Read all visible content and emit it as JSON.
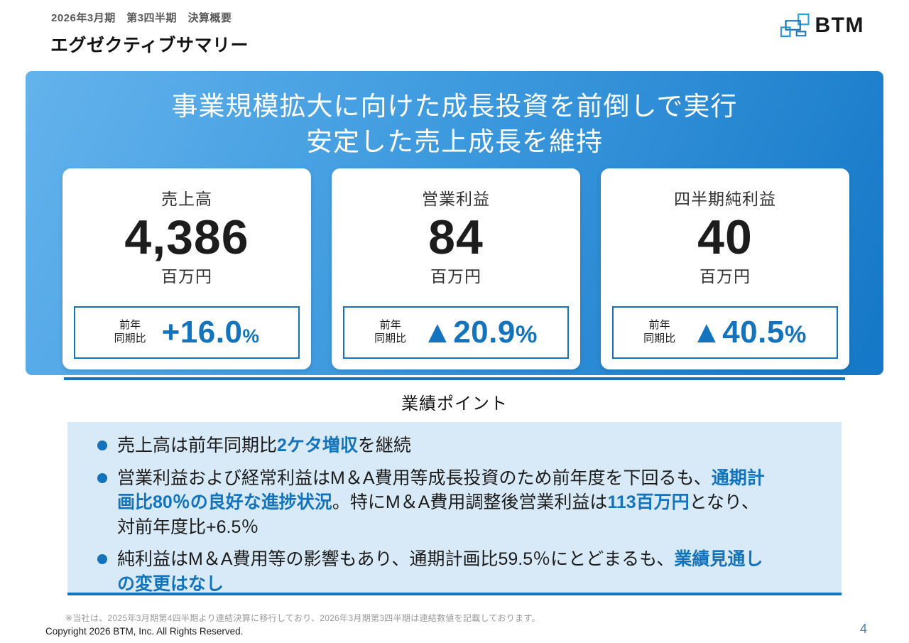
{
  "page": {
    "eyebrow": "2026年3月期　第3四半期　決算概要",
    "title": "エグゼクティブサマリー",
    "footnote": "※当社は、2025年3月期第4四半期より連結決算に移行しており、2026年3月期第3四半期は連結数値を記載しております。",
    "copyright": "Copyright 2026 BTM, Inc. All Rights Reserved.",
    "page_number": "4"
  },
  "logo": {
    "text": "BTM"
  },
  "banner": {
    "headline_line1": "事業規模拡大に向けた成長投資を前倒しで実行",
    "headline_line2": "安定した売上成長を維持"
  },
  "cards": [
    {
      "label": "売上高",
      "value": "4,386",
      "unit": "百万円",
      "yoy_label_lines": [
        "前年",
        "同期比"
      ],
      "change_value": "+16.0",
      "change_unit": "%"
    },
    {
      "label": "営業利益",
      "value": "84",
      "unit": "百万円",
      "yoy_label_lines": [
        "前年",
        "同期比"
      ],
      "change_value": "▲20.9",
      "change_unit": "%"
    },
    {
      "label": "四半期純利益",
      "value": "40",
      "unit": "百万円",
      "yoy_label_lines": [
        "前年",
        "同期比"
      ],
      "change_value": "▲40.5",
      "change_unit": "%"
    }
  ],
  "points": {
    "heading": "業績ポイント",
    "items": [
      [
        {
          "t": "売上高は前年同期比",
          "hl": false
        },
        {
          "t": "2ケタ増収",
          "hl": true
        },
        {
          "t": "を継続",
          "hl": false
        }
      ],
      [
        {
          "t": "営業利益および経常利益はM＆A費用等成長投資のため前年度を下回るも、",
          "hl": false
        },
        {
          "t": "通期計\n画比80％の良好な進捗状況",
          "hl": true
        },
        {
          "t": "。特にM＆A費用調整後営業利益は",
          "hl": false
        },
        {
          "t": "113百万円",
          "hl": true
        },
        {
          "t": "となり、\n対前年度比+6.5％",
          "hl": false
        }
      ],
      [
        {
          "t": "純利益はM＆A費用等の影響もあり、通期計画比59.5％にとどまるも、",
          "hl": false
        },
        {
          "t": "業績見通し\nの変更はなし",
          "hl": true
        }
      ]
    ]
  },
  "colors": {
    "accent": "#1373bc",
    "banner_gradient_from": "#63b3ec",
    "banner_gradient_to": "#1477c7",
    "points_background": "#d8e9f7",
    "logo_light_blue": "#29a8e0",
    "logo_dark_blue": "#1b74ba"
  }
}
